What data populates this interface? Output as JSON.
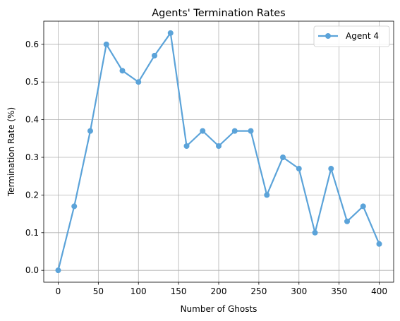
{
  "chart_data": {
    "type": "line",
    "title": "Agents' Termination Rates",
    "xlabel": "Number of Ghosts",
    "ylabel": "Termination Rate (%)",
    "xlim": [
      -18,
      418
    ],
    "ylim": [
      -0.0315,
      0.6615
    ],
    "xticks": [
      0,
      50,
      100,
      150,
      200,
      250,
      300,
      350,
      400
    ],
    "yticks": [
      0.0,
      0.1,
      0.2,
      0.3,
      0.4,
      0.5,
      0.6
    ],
    "xtick_labels": [
      "0",
      "50",
      "100",
      "150",
      "200",
      "250",
      "300",
      "350",
      "400"
    ],
    "ytick_labels": [
      "0.0",
      "0.1",
      "0.2",
      "0.3",
      "0.4",
      "0.5",
      "0.6"
    ],
    "grid": true,
    "legend_position": "top-right",
    "series": [
      {
        "name": "Agent 4",
        "color": "#5ba3d9",
        "marker": "circle",
        "x": [
          0,
          20,
          40,
          60,
          80,
          100,
          120,
          140,
          160,
          180,
          200,
          220,
          240,
          260,
          280,
          300,
          320,
          340,
          360,
          380,
          400
        ],
        "y": [
          0.0,
          0.17,
          0.37,
          0.6,
          0.53,
          0.5,
          0.57,
          0.63,
          0.33,
          0.37,
          0.33,
          0.37,
          0.37,
          0.2,
          0.3,
          0.27,
          0.1,
          0.27,
          0.13,
          0.17,
          0.07
        ]
      }
    ]
  }
}
